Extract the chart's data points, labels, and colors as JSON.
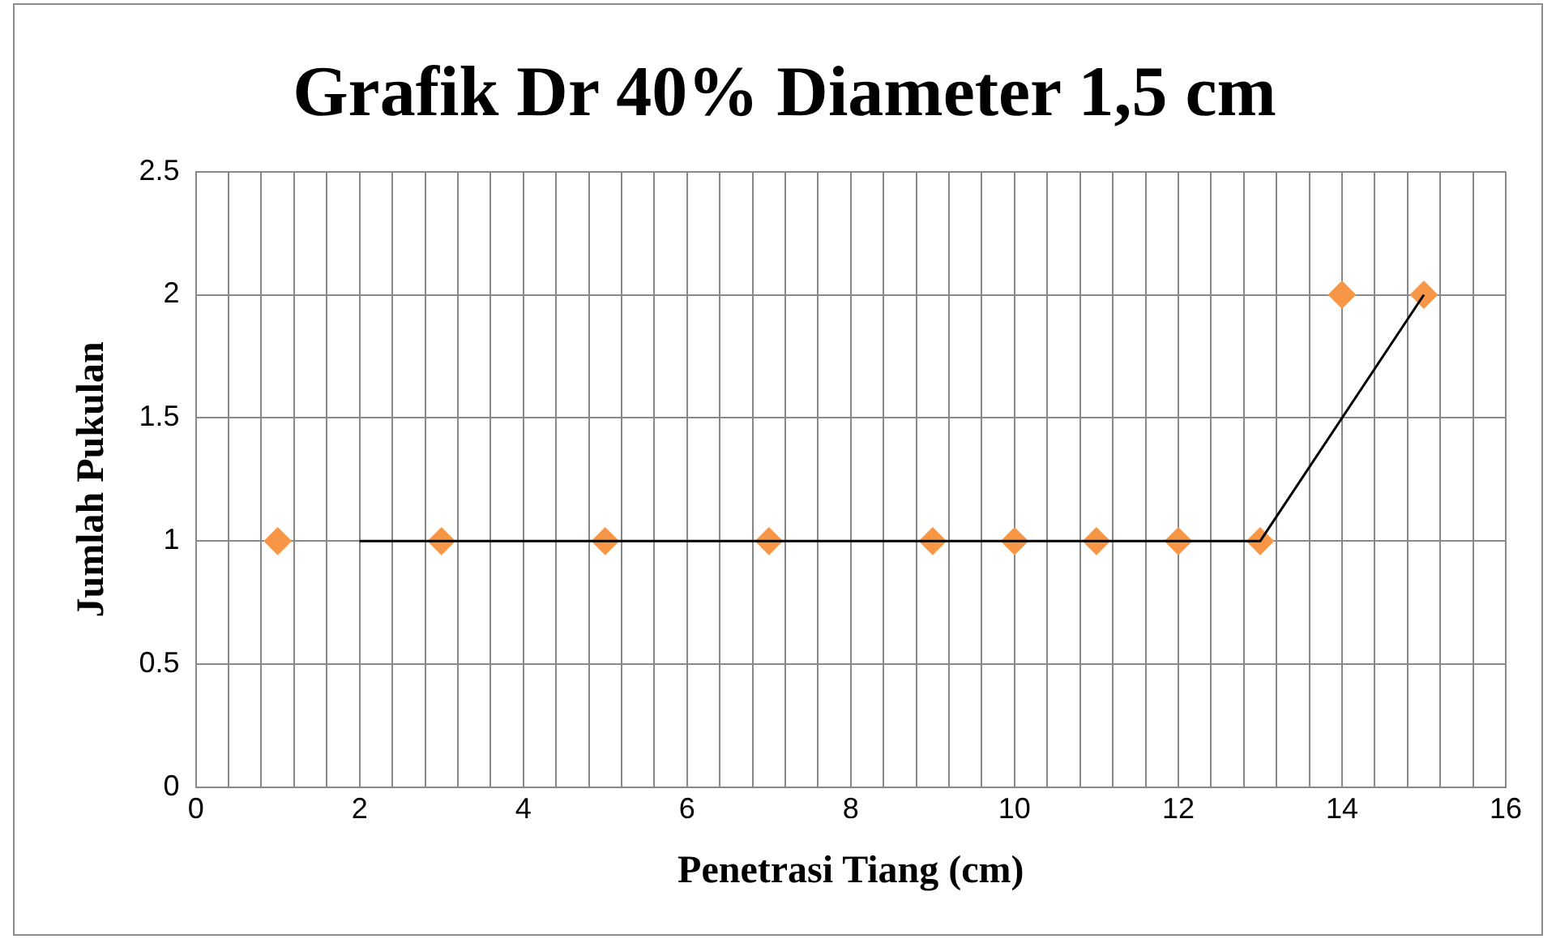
{
  "chart_data": {
    "type": "scatter",
    "title": "Grafik Dr 40% Diameter 1,5 cm",
    "xlabel": "Penetrasi Tiang (cm)",
    "ylabel": "Jumlah Pukulan",
    "xlim": [
      0,
      16
    ],
    "ylim": [
      0,
      2.5
    ],
    "xticks": [
      0,
      {
        "value": 0.4,
        "label": null
      },
      {
        "value": 0.8,
        "label": null
      },
      {
        "value": 1.2,
        "label": null
      },
      {
        "value": 1.6,
        "label": null
      },
      2,
      {
        "value": 2.4,
        "label": null
      },
      {
        "value": 2.8,
        "label": null
      },
      {
        "value": 3.2,
        "label": null
      },
      {
        "value": 3.6,
        "label": null
      },
      4,
      {
        "value": 4.4,
        "label": null
      },
      {
        "value": 4.8,
        "label": null
      },
      {
        "value": 5.2,
        "label": null
      },
      {
        "value": 5.6,
        "label": null
      },
      6,
      {
        "value": 6.4,
        "label": null
      },
      {
        "value": 6.8,
        "label": null
      },
      {
        "value": 7.2,
        "label": null
      },
      {
        "value": 7.6,
        "label": null
      },
      8,
      {
        "value": 8.4,
        "label": null
      },
      {
        "value": 8.8,
        "label": null
      },
      {
        "value": 9.2,
        "label": null
      },
      {
        "value": 9.6,
        "label": null
      },
      10,
      {
        "value": 10.4,
        "label": null
      },
      {
        "value": 10.8,
        "label": null
      },
      {
        "value": 11.2,
        "label": null
      },
      {
        "value": 11.6,
        "label": null
      },
      12,
      {
        "value": 12.4,
        "label": null
      },
      {
        "value": 12.8,
        "label": null
      },
      {
        "value": 13.2,
        "label": null
      },
      {
        "value": 13.6,
        "label": null
      },
      14,
      {
        "value": 14.4,
        "label": null
      },
      {
        "value": 14.8,
        "label": null
      },
      {
        "value": 15.2,
        "label": null
      },
      {
        "value": 15.6,
        "label": null
      },
      16
    ],
    "yticks": [
      0,
      0.5,
      1,
      1.5,
      2,
      2.5
    ],
    "grid": true,
    "marker": "diamond",
    "series": [
      {
        "type": "scatter",
        "color": "#f79646",
        "x": [
          1,
          3,
          5,
          7,
          9,
          10,
          11,
          12,
          13,
          14,
          15
        ],
        "values": [
          1,
          1,
          1,
          1,
          1,
          1,
          1,
          1,
          1,
          2,
          2
        ]
      },
      {
        "type": "line",
        "color": "#000000",
        "marker": "none",
        "x": [
          2,
          13,
          15
        ],
        "values": [
          1,
          1,
          2
        ]
      }
    ]
  }
}
